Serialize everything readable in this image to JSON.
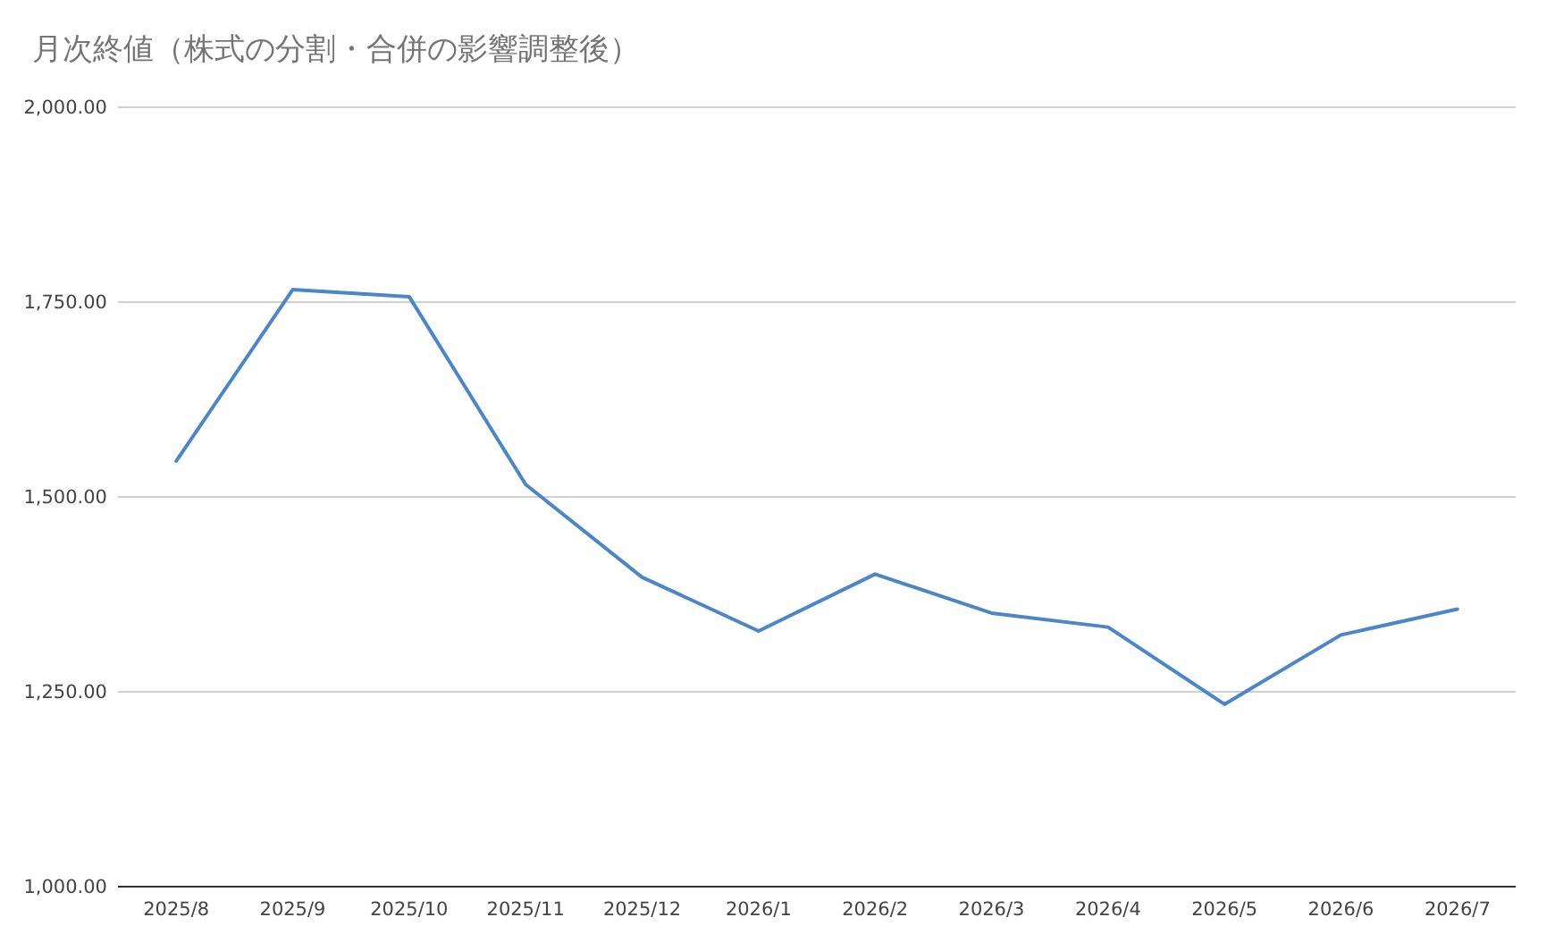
{
  "chart_data": {
    "type": "line",
    "title": "月次終値（株式の分割・合併の影響調整後）",
    "categories": [
      "2025/8",
      "2025/9",
      "2025/10",
      "2025/11",
      "2025/12",
      "2026/1",
      "2026/2",
      "2026/3",
      "2026/4",
      "2026/5",
      "2026/6",
      "2026/7"
    ],
    "series": [
      {
        "color": "#4a86c8",
        "values": [
          1546,
          1766,
          1757,
          1516,
          1397,
          1328,
          1401,
          1351,
          1333,
          1234,
          1323,
          1356
        ]
      }
    ],
    "ylim": [
      1000,
      2000
    ],
    "yticks": [
      {
        "value": 1000,
        "label": "1,000.00"
      },
      {
        "value": 1250,
        "label": "1,250.00"
      },
      {
        "value": 1500,
        "label": "1,500.00"
      },
      {
        "value": 1750,
        "label": "1,750.00"
      },
      {
        "value": 2000,
        "label": "2,000.00"
      }
    ],
    "grid": "y",
    "marker": "none",
    "line_style": "solid"
  }
}
